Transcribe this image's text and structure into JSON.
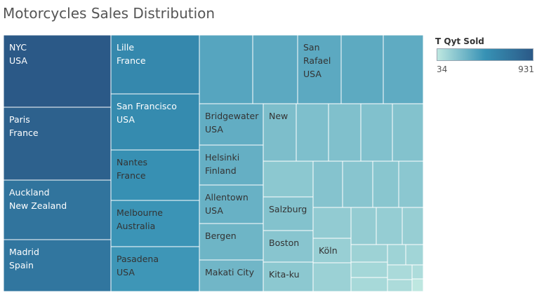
{
  "chart_data": {
    "type": "treemap",
    "title": "Motorcycles Sales Distribution",
    "color_legend": {
      "title": "T Qyt Sold",
      "min": 34,
      "max": 931,
      "min_label": "34",
      "max_label": "931",
      "low_color": "#b9e3dc",
      "high_color": "#2b5987"
    },
    "items": [
      {
        "lines": [
          "NYC",
          "USA"
        ],
        "value": 931
      },
      {
        "lines": [
          "Paris",
          "France"
        ],
        "value": 870
      },
      {
        "lines": [
          "Auckland",
          "New Zealand"
        ],
        "value": 720
      },
      {
        "lines": [
          "Madrid",
          "Spain"
        ],
        "value": 700
      },
      {
        "lines": [
          "Lille",
          "France"
        ],
        "value": 560
      },
      {
        "lines": [
          "San Francisco",
          "USA"
        ],
        "value": 540
      },
      {
        "lines": [
          "Nantes",
          "France"
        ],
        "value": 500
      },
      {
        "lines": [
          "Melbourne",
          "Australia"
        ],
        "value": 470
      },
      {
        "lines": [
          "Pasadena",
          "USA"
        ],
        "value": 460
      },
      {
        "lines": [],
        "value": 380
      },
      {
        "lines": [],
        "value": 360
      },
      {
        "lines": [
          "San",
          "Rafael",
          "USA"
        ],
        "value": 360
      },
      {
        "lines": [],
        "value": 355
      },
      {
        "lines": [],
        "value": 350
      },
      {
        "lines": [
          "Bridgewater",
          "USA"
        ],
        "value": 340
      },
      {
        "lines": [
          "Helsinki",
          "Finland"
        ],
        "value": 330
      },
      {
        "lines": [
          "Allentown",
          "USA"
        ],
        "value": 320
      },
      {
        "lines": [
          "Bergen"
        ],
        "value": 300
      },
      {
        "lines": [
          "Makati City"
        ],
        "value": 290
      },
      {
        "lines": [
          "New"
        ],
        "value": 250
      },
      {
        "lines": [],
        "value": 245
      },
      {
        "lines": [],
        "value": 240
      },
      {
        "lines": [],
        "value": 235
      },
      {
        "lines": [],
        "value": 230
      },
      {
        "lines": [],
        "value": 225
      },
      {
        "lines": [],
        "value": 215
      },
      {
        "lines": [],
        "value": 210
      },
      {
        "lines": [],
        "value": 205
      },
      {
        "lines": [],
        "value": 200
      },
      {
        "lines": [
          "Salzburg"
        ],
        "value": 230
      },
      {
        "lines": [
          "Boston"
        ],
        "value": 215
      },
      {
        "lines": [
          "Kita-ku"
        ],
        "value": 200
      },
      {
        "lines": [],
        "value": 180
      },
      {
        "lines": [],
        "value": 175
      },
      {
        "lines": [],
        "value": 170
      },
      {
        "lines": [],
        "value": 165
      },
      {
        "lines": [
          "Köln"
        ],
        "value": 160
      },
      {
        "lines": [],
        "value": 150
      },
      {
        "lines": [],
        "value": 145
      },
      {
        "lines": [],
        "value": 140
      },
      {
        "lines": [],
        "value": 130
      },
      {
        "lines": [],
        "value": 120
      },
      {
        "lines": [],
        "value": 110
      },
      {
        "lines": [],
        "value": 100
      },
      {
        "lines": [],
        "value": 95
      },
      {
        "lines": [],
        "value": 90
      },
      {
        "lines": [],
        "value": 34
      }
    ]
  }
}
